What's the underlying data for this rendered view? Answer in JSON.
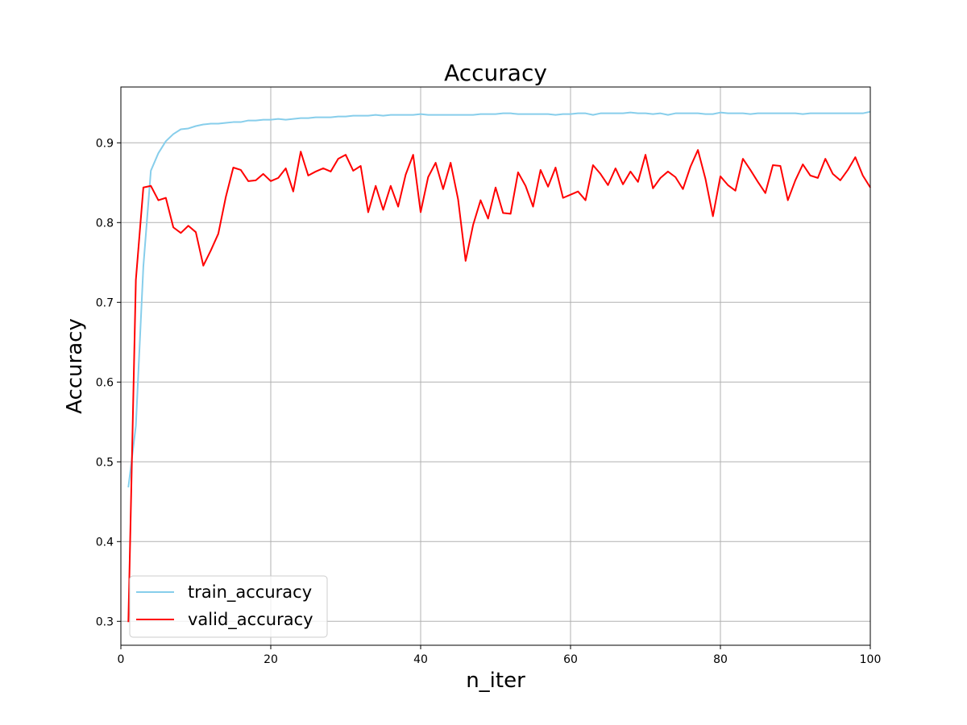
{
  "chart_data": {
    "type": "line",
    "title": "Accuracy",
    "xlabel": "n_iter",
    "ylabel": "Accuracy",
    "xlim": [
      0,
      100
    ],
    "ylim": [
      0.27,
      0.97
    ],
    "xticks": [
      0,
      20,
      40,
      60,
      80,
      100
    ],
    "yticks": [
      0.3,
      0.4,
      0.5,
      0.6,
      0.7,
      0.8,
      0.9
    ],
    "grid": true,
    "legend_position": "lower-left",
    "x": [
      1,
      2,
      3,
      4,
      5,
      6,
      7,
      8,
      9,
      10,
      11,
      12,
      13,
      14,
      15,
      16,
      17,
      18,
      19,
      20,
      21,
      22,
      23,
      24,
      25,
      26,
      27,
      28,
      29,
      30,
      31,
      32,
      33,
      34,
      35,
      36,
      37,
      38,
      39,
      40,
      41,
      42,
      43,
      44,
      45,
      46,
      47,
      48,
      49,
      50,
      51,
      52,
      53,
      54,
      55,
      56,
      57,
      58,
      59,
      60,
      61,
      62,
      63,
      64,
      65,
      66,
      67,
      68,
      69,
      70,
      71,
      72,
      73,
      74,
      75,
      76,
      77,
      78,
      79,
      80,
      81,
      82,
      83,
      84,
      85,
      86,
      87,
      88,
      89,
      90,
      91,
      92,
      93,
      94,
      95,
      96,
      97,
      98,
      99,
      100
    ],
    "series": [
      {
        "name": "train_accuracy",
        "color": "#87ceeb",
        "values": [
          0.468,
          0.545,
          0.745,
          0.865,
          0.887,
          0.902,
          0.911,
          0.917,
          0.918,
          0.921,
          0.923,
          0.924,
          0.924,
          0.925,
          0.926,
          0.926,
          0.928,
          0.928,
          0.929,
          0.929,
          0.93,
          0.929,
          0.93,
          0.931,
          0.931,
          0.932,
          0.932,
          0.932,
          0.933,
          0.933,
          0.934,
          0.934,
          0.934,
          0.935,
          0.934,
          0.935,
          0.935,
          0.935,
          0.935,
          0.936,
          0.935,
          0.935,
          0.935,
          0.935,
          0.935,
          0.935,
          0.935,
          0.936,
          0.936,
          0.936,
          0.937,
          0.937,
          0.936,
          0.936,
          0.936,
          0.936,
          0.936,
          0.935,
          0.936,
          0.936,
          0.937,
          0.937,
          0.935,
          0.937,
          0.937,
          0.937,
          0.937,
          0.938,
          0.937,
          0.937,
          0.936,
          0.937,
          0.935,
          0.937,
          0.937,
          0.937,
          0.937,
          0.936,
          0.936,
          0.938,
          0.937,
          0.937,
          0.937,
          0.936,
          0.937,
          0.937,
          0.937,
          0.937,
          0.937,
          0.937,
          0.936,
          0.937,
          0.937,
          0.937,
          0.937,
          0.937,
          0.937,
          0.937,
          0.937,
          0.939
        ]
      },
      {
        "name": "valid_accuracy",
        "color": "#ff0000",
        "values": [
          0.299,
          0.728,
          0.844,
          0.846,
          0.828,
          0.831,
          0.794,
          0.787,
          0.796,
          0.788,
          0.746,
          0.765,
          0.786,
          0.832,
          0.869,
          0.866,
          0.852,
          0.853,
          0.861,
          0.852,
          0.856,
          0.868,
          0.839,
          0.889,
          0.859,
          0.864,
          0.868,
          0.864,
          0.88,
          0.885,
          0.865,
          0.871,
          0.813,
          0.846,
          0.816,
          0.846,
          0.82,
          0.86,
          0.885,
          0.813,
          0.857,
          0.875,
          0.842,
          0.875,
          0.829,
          0.752,
          0.797,
          0.828,
          0.805,
          0.844,
          0.812,
          0.811,
          0.863,
          0.846,
          0.82,
          0.866,
          0.845,
          0.869,
          0.831,
          0.835,
          0.839,
          0.828,
          0.872,
          0.861,
          0.847,
          0.868,
          0.848,
          0.864,
          0.851,
          0.885,
          0.843,
          0.856,
          0.864,
          0.857,
          0.842,
          0.87,
          0.891,
          0.855,
          0.808,
          0.858,
          0.847,
          0.84,
          0.88,
          0.866,
          0.851,
          0.837,
          0.872,
          0.871,
          0.828,
          0.853,
          0.873,
          0.859,
          0.856,
          0.88,
          0.861,
          0.853,
          0.866,
          0.882,
          0.859,
          0.844
        ]
      }
    ]
  }
}
